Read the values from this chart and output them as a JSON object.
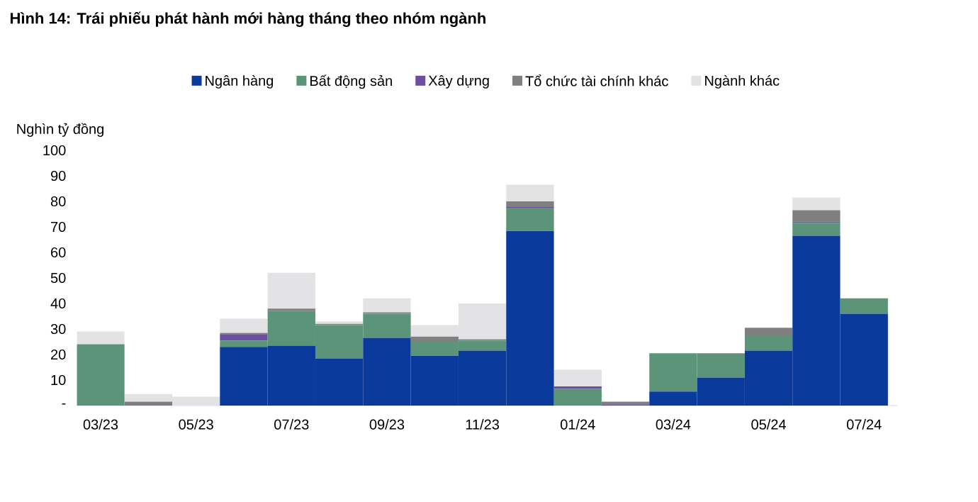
{
  "chart_data": {
    "type": "bar",
    "stacked": true,
    "title": "Hình 14: Trái phiếu phát hành mới hàng tháng theo nhóm ngành",
    "ylabel": "Nghìn tỷ đồng",
    "categories": [
      "03/23",
      null,
      "05/23",
      null,
      "07/23",
      null,
      "09/23",
      null,
      "11/23",
      null,
      "01/24",
      null,
      "03/24",
      null,
      "05/24",
      null,
      "07/24"
    ],
    "ylim": [
      0,
      100
    ],
    "yticks": [
      {
        "value": 0,
        "label": "-"
      },
      10,
      20,
      30,
      40,
      50,
      60,
      70,
      80,
      90,
      100
    ],
    "grid": false,
    "legend": "top",
    "series": [
      {
        "name": "Ngân hàng",
        "color": "#0a3a9c",
        "values": [
          0,
          0,
          0,
          23,
          23.5,
          18.5,
          26.5,
          19.5,
          21.5,
          68.5,
          0,
          0,
          5.5,
          11,
          21.5,
          66.5,
          36
        ]
      },
      {
        "name": "Bất động sản",
        "color": "#5b9479",
        "values": [
          24,
          0,
          0,
          2.5,
          13.5,
          13,
          9.5,
          5.5,
          4,
          9,
          6.5,
          0,
          15,
          9,
          6,
          5,
          6
        ]
      },
      {
        "name": "Xây dựng",
        "color": "#6b4ea0",
        "values": [
          0,
          0,
          0,
          2.5,
          0,
          0,
          0,
          0,
          0,
          0.5,
          1,
          0.5,
          0,
          0,
          0,
          0.5,
          0
        ]
      },
      {
        "name": "Tổ chức tài chính khác",
        "color": "#7f7f80",
        "values": [
          0,
          1.5,
          0,
          0.5,
          1,
          0.5,
          0.5,
          2,
          0.5,
          2,
          0,
          1,
          0,
          0.5,
          3,
          4.5,
          0
        ]
      },
      {
        "name": "Ngành khác",
        "color": "#e3e3e6",
        "values": [
          5,
          3,
          3.5,
          5.5,
          14,
          1,
          5.5,
          4.5,
          14,
          6.5,
          6.5,
          0,
          null,
          0,
          0,
          5,
          null
        ]
      }
    ]
  }
}
